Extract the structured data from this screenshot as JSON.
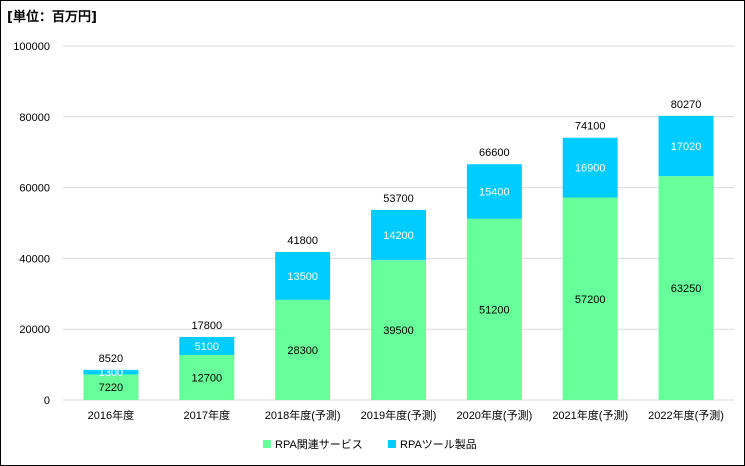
{
  "unit_label": "[単位：百万円]",
  "chart_data": {
    "type": "bar",
    "stacked": true,
    "categories": [
      "2016年度",
      "2017年度",
      "2018年度(予測)",
      "2019年度(予測)",
      "2020年度(予測)",
      "2021年度(予測)",
      "2022年度(予測)"
    ],
    "series": [
      {
        "name": "RPA関連サービス",
        "color": "#66ff99",
        "values": [
          7220,
          12700,
          28300,
          39500,
          51200,
          57200,
          63250
        ]
      },
      {
        "name": "RPAツール製品",
        "color": "#00ccff",
        "values": [
          1300,
          5100,
          13500,
          14200,
          15400,
          16900,
          17020
        ]
      }
    ],
    "totals": [
      8520,
      17800,
      41800,
      53700,
      66600,
      74100,
      80270
    ],
    "ylim": [
      0,
      100000
    ],
    "yticks": [
      "0",
      "20000",
      "40000",
      "60000",
      "80000",
      "100000"
    ],
    "grid": true,
    "legend": "bottom"
  }
}
